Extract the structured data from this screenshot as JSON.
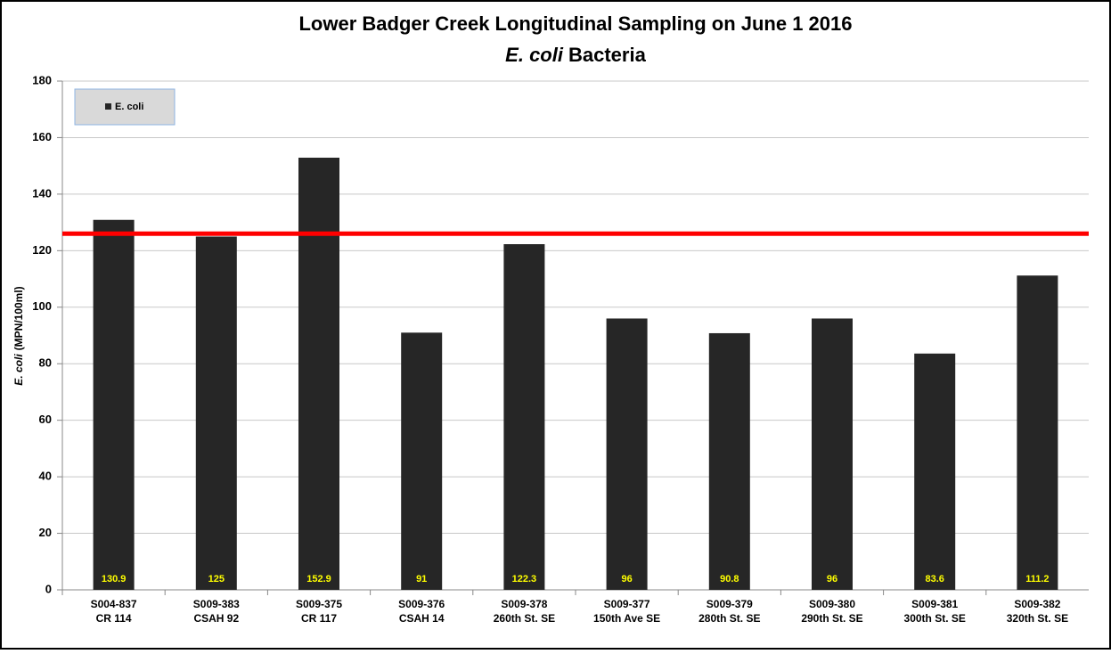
{
  "chart_data": {
    "type": "bar",
    "title": "Lower Badger Creek Longitudinal Sampling on June 1 2016",
    "subtitle": {
      "italic": "E. coli",
      "text": "Bacteria"
    },
    "ylabel": {
      "italic": "E. coli",
      "text": "(MPN/100ml)"
    },
    "categories": [
      [
        "S004-837",
        "CR 114"
      ],
      [
        "S009-383",
        "CSAH 92"
      ],
      [
        "S009-375",
        "CR 117"
      ],
      [
        "S009-376",
        "CSAH 14"
      ],
      [
        "S009-378",
        "260th St. SE"
      ],
      [
        "S009-377",
        "150th Ave SE"
      ],
      [
        "S009-379",
        "280th St. SE"
      ],
      [
        "S009-380",
        "290th St. SE"
      ],
      [
        "S009-381",
        "300th St. SE"
      ],
      [
        "S009-382",
        "320th St. SE"
      ]
    ],
    "series": [
      {
        "name": "E. coli",
        "color": "#262626",
        "values": [
          130.9,
          125,
          152.9,
          91,
          122.3,
          96,
          90.8,
          96,
          83.6,
          111.2
        ]
      }
    ],
    "reference_line": {
      "value": 126,
      "color": "#ff0000"
    },
    "value_label_color": "#ffff00",
    "ylim": [
      0,
      180
    ],
    "yticks": [
      0,
      20,
      40,
      60,
      80,
      100,
      120,
      140,
      160,
      180
    ],
    "grid": true,
    "legend": "top-left"
  }
}
